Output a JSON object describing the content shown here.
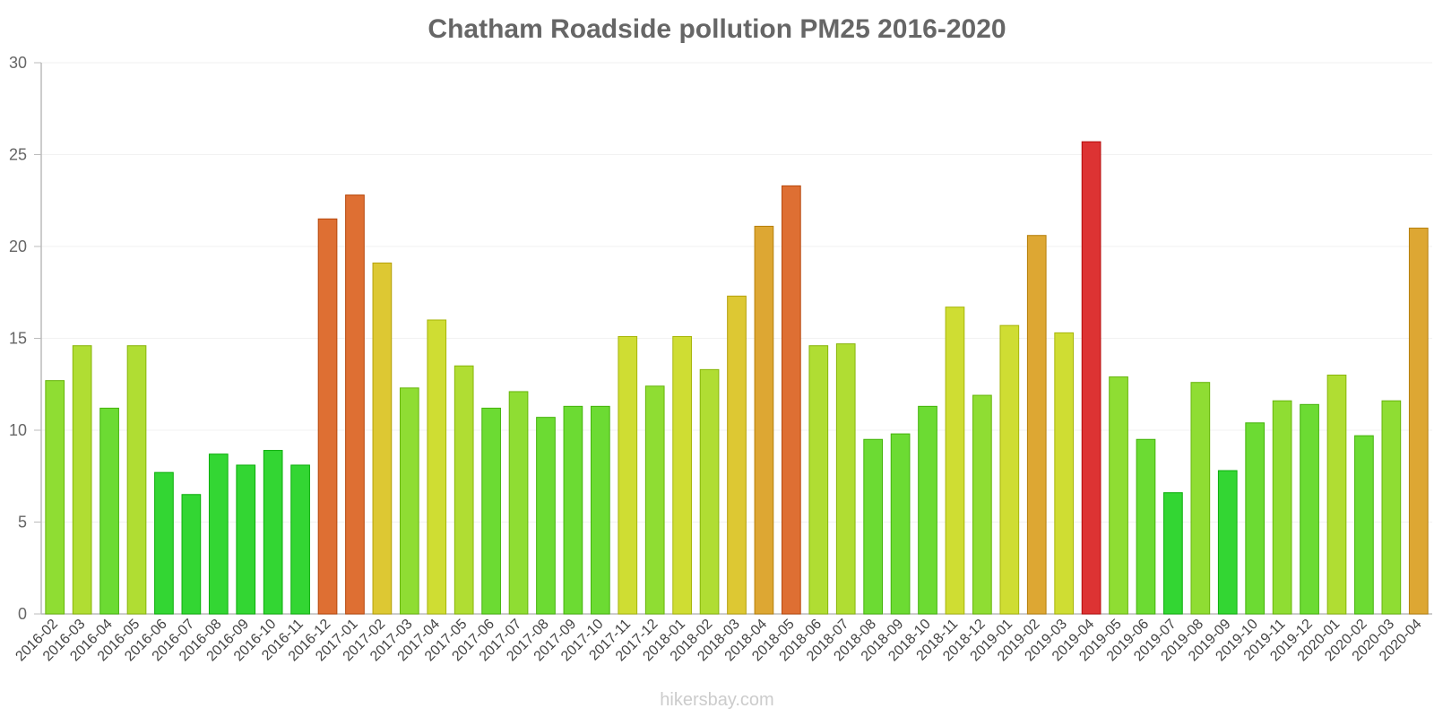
{
  "chart_data": {
    "type": "bar",
    "title": "Chatham Roadside pollution PM25 2016-2020",
    "xlabel": "",
    "ylabel": "",
    "ylim": [
      0,
      30
    ],
    "yticks": [
      "0",
      "5",
      "10",
      "15",
      "20",
      "25",
      "30"
    ],
    "grid": true,
    "categories": [
      "2016-02",
      "2016-03",
      "2016-04",
      "2016-05",
      "2016-06",
      "2016-07",
      "2016-08",
      "2016-09",
      "2016-10",
      "2016-11",
      "2016-12",
      "2017-01",
      "2017-02",
      "2017-03",
      "2017-04",
      "2017-05",
      "2017-06",
      "2017-07",
      "2017-08",
      "2017-09",
      "2017-10",
      "2017-11",
      "2017-12",
      "2018-01",
      "2018-02",
      "2018-03",
      "2018-04",
      "2018-05",
      "2018-06",
      "2018-07",
      "2018-08",
      "2018-09",
      "2018-10",
      "2018-11",
      "2018-12",
      "2019-01",
      "2019-02",
      "2019-03",
      "2019-04",
      "2019-05",
      "2019-06",
      "2019-07",
      "2019-08",
      "2019-09",
      "2019-10",
      "2019-11",
      "2019-12",
      "2020-01",
      "2020-02",
      "2020-03",
      "2020-04"
    ],
    "values": [
      12.7,
      14.6,
      11.2,
      14.6,
      7.7,
      6.5,
      8.7,
      8.1,
      8.9,
      8.1,
      21.5,
      22.8,
      19.1,
      12.3,
      16.0,
      13.5,
      11.2,
      12.1,
      10.7,
      11.3,
      11.3,
      15.1,
      12.4,
      15.1,
      13.3,
      17.3,
      21.1,
      23.3,
      14.6,
      14.7,
      9.5,
      9.8,
      11.3,
      16.7,
      11.9,
      15.7,
      20.6,
      15.3,
      25.7,
      12.9,
      9.5,
      6.6,
      12.6,
      7.8,
      10.4,
      11.6,
      11.4,
      13.0,
      9.7,
      11.6,
      21.0
    ]
  },
  "watermark": "hikersbay.com",
  "colors": {
    "title": "#666666",
    "axis": "#bbbbbb",
    "grid": "#f2f2f2"
  }
}
